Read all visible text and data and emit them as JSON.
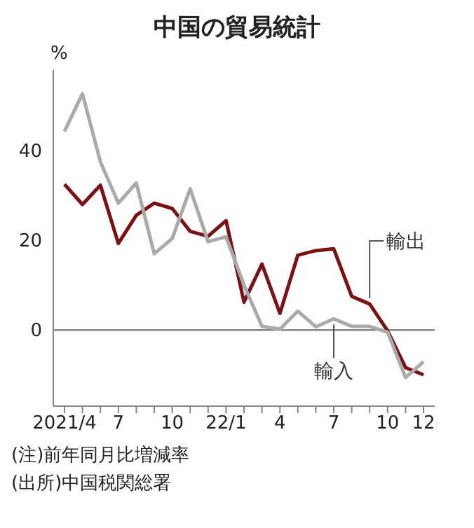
{
  "chart_data": {
    "type": "line",
    "title": "中国の貿易統計",
    "ylabel": "%",
    "categories": [
      "2021/4",
      null,
      null,
      "7",
      null,
      null,
      "10",
      null,
      null,
      "22/1",
      null,
      null,
      "4",
      null,
      null,
      "7",
      null,
      null,
      "10",
      null,
      "12"
    ],
    "series": [
      {
        "name": "輸出",
        "color": "#7b1113",
        "values": [
          32.5,
          28,
          32.3,
          19.3,
          25.6,
          28.3,
          27.1,
          22,
          20.9,
          24.4,
          6.2,
          14.7,
          3.7,
          16.7,
          17.7,
          18.1,
          7.5,
          5.8,
          -0.2,
          -8.4,
          -10
        ]
      },
      {
        "name": "輸入",
        "color": "#aaaaaa",
        "values": [
          44.3,
          52.7,
          37.5,
          28.3,
          32.8,
          17,
          20.4,
          31.5,
          19.7,
          20.8,
          10,
          0.8,
          0.2,
          4.2,
          0.7,
          2.5,
          0.8,
          0.8,
          -0.5,
          -10.6,
          -7.1
        ]
      }
    ],
    "ylim": [
      -17,
      58
    ],
    "yticks": [
      0,
      20,
      40
    ],
    "marker": "none",
    "line_style": "solid",
    "ref_lines": [
      {
        "axis": "y",
        "value": 0,
        "color": "#666666"
      }
    ],
    "annotations": [
      "(注)前年同月比増減率",
      "(出所)中国税関総署"
    ]
  }
}
